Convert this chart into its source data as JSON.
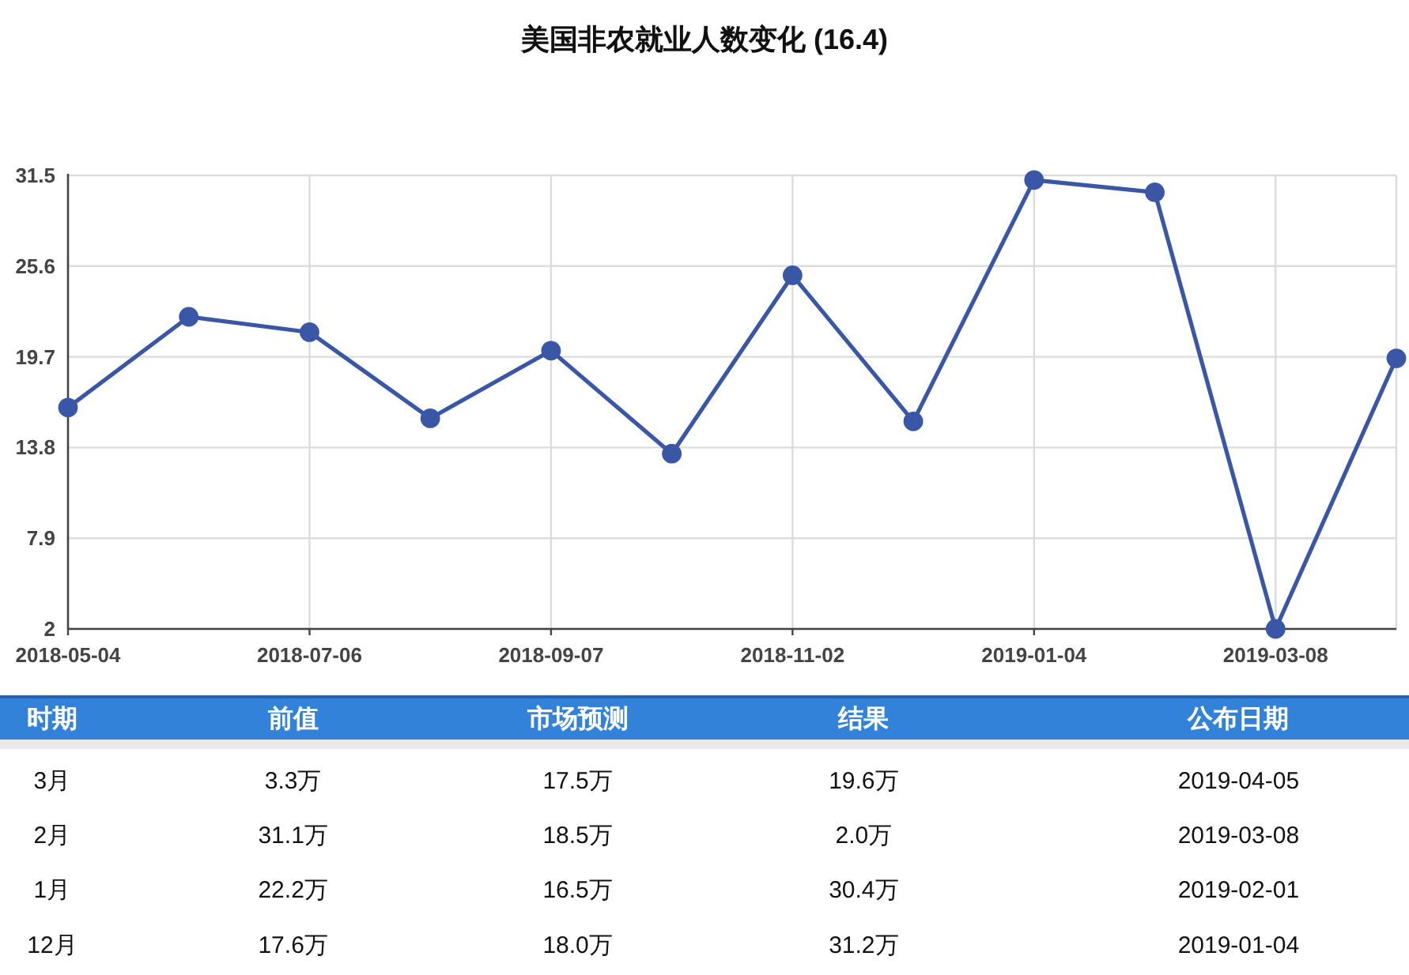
{
  "chart_data": [
    {
      "type": "line",
      "title": "美国非农就业人数变化 (16.4)",
      "categories": [
        "2018-05-04",
        null,
        "2018-07-06",
        null,
        "2018-09-07",
        null,
        "2018-11-02",
        null,
        "2019-01-04",
        null,
        "2019-03-08",
        null
      ],
      "series": [
        {
          "color": "#3a56a6",
          "values": [
            16.4,
            22.3,
            21.3,
            15.7,
            20.1,
            13.4,
            25.0,
            15.5,
            31.2,
            30.4,
            2.0,
            19.6
          ]
        }
      ],
      "ylim": [
        2,
        31.5
      ],
      "yticks": [
        2,
        7.9,
        13.8,
        19.7,
        25.6,
        31.5
      ],
      "grid": true,
      "marker": "circle"
    },
    {
      "type": "other",
      "categories": [
        "时期",
        "前值",
        "市场预测",
        "结果",
        "公布日期"
      ],
      "annotations": [
        "3月",
        "3.3万",
        "17.5万",
        "19.6万",
        "2019-04-05",
        "2月",
        "31.1万",
        "18.5万",
        "2.0万",
        "2019-03-08",
        "1月",
        "22.2万",
        "16.5万",
        "30.4万",
        "2019-02-01",
        "12月",
        "17.6万",
        "18.0万",
        "31.2万",
        "2019-01-04"
      ]
    }
  ]
}
